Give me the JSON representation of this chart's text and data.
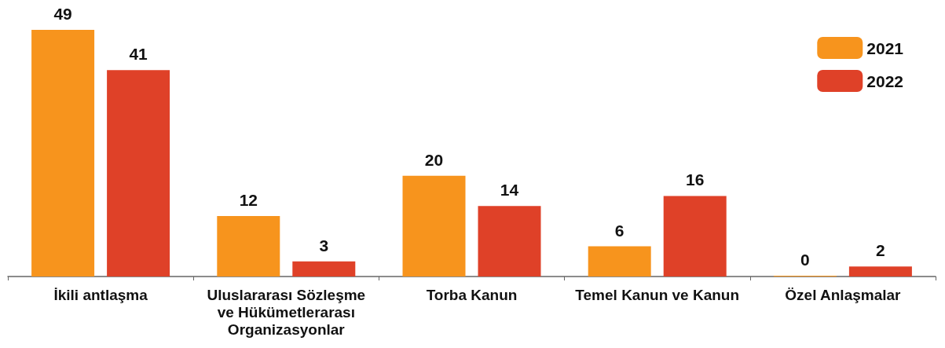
{
  "chart_data": {
    "type": "bar",
    "categories": [
      "İkili antlaşma",
      "Uluslararası Sözleşme ve Hükümetlerarası Organizasyonlar",
      "Torba Kanun",
      "Temel Kanun ve Kanun",
      "Özel Anlaşmalar"
    ],
    "series": [
      {
        "name": "2021",
        "color": "#f7941d",
        "values": [
          49,
          12,
          20,
          6,
          0
        ]
      },
      {
        "name": "2022",
        "color": "#df4128",
        "values": [
          41,
          3,
          14,
          16,
          2
        ]
      }
    ],
    "data_labels": true,
    "legend": "top right"
  }
}
